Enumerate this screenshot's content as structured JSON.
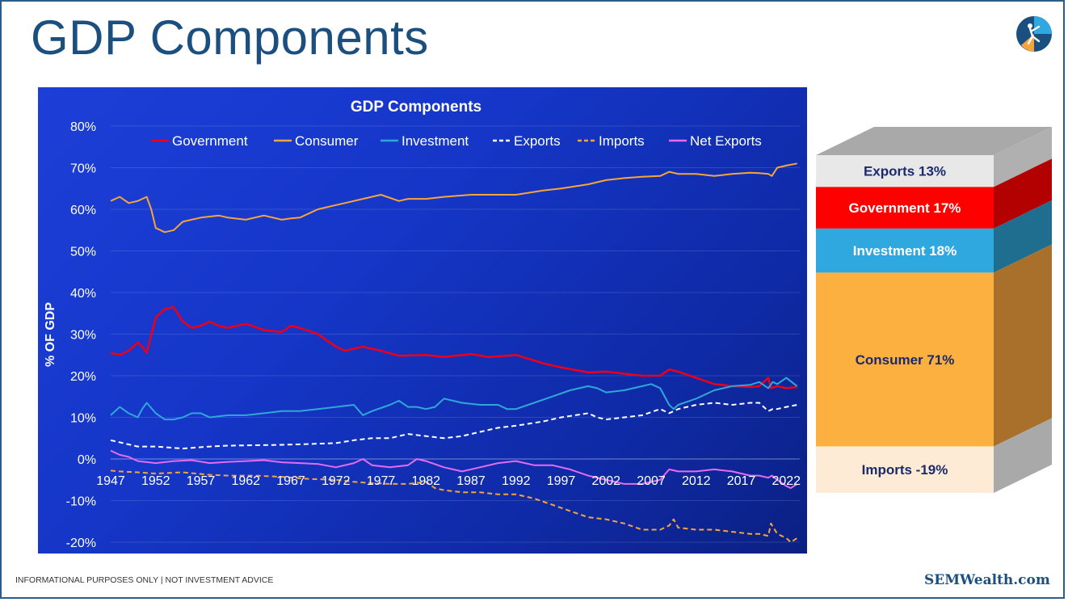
{
  "page": {
    "title": "GDP Components",
    "footer_note": "INFORMATIONAL PURPOSES ONLY | NOT INVESTMENT ADVICE",
    "brand": "SEMWealth.com"
  },
  "colors": {
    "title": "#1b4f80",
    "panel": "#1536c7",
    "government": "#e8001c",
    "consumer": "#f5a53a",
    "investment": "#2fa8d8",
    "exports": "#ffffff",
    "imports": "#f5a53a",
    "net_exports": "#e66bf0"
  },
  "chart_data": [
    {
      "type": "line",
      "title": "GDP Components",
      "xlabel": "",
      "ylabel": "% OF GDP",
      "ylim": [
        -20,
        80
      ],
      "yticks": [
        "80%",
        "70%",
        "60%",
        "50%",
        "40%",
        "30%",
        "20%",
        "10%",
        "0%",
        "-10%",
        "-20%"
      ],
      "xlim": [
        1947,
        2023.5
      ],
      "xticks": [
        "1947",
        "1952",
        "1957",
        "1962",
        "1967",
        "1972",
        "1977",
        "1982",
        "1987",
        "1992",
        "1997",
        "2002",
        "2007",
        "2012",
        "2017",
        "2022"
      ],
      "grid": true,
      "legend": "top",
      "series": [
        {
          "name": "Government",
          "color": "#e8001c",
          "dash": false,
          "x": [
            1947,
            1948,
            1949,
            1950,
            1950.5,
            1951,
            1952,
            1953,
            1954,
            1955,
            1956,
            1957,
            1958,
            1959,
            1960,
            1962,
            1964,
            1966,
            1967,
            1968,
            1970,
            1972,
            1973,
            1975,
            1977,
            1979,
            1982,
            1984,
            1987,
            1989,
            1992,
            1995,
            1997,
            2000,
            2002,
            2004,
            2006,
            2008,
            2009,
            2010,
            2012,
            2014,
            2016,
            2018,
            2019,
            2020,
            2020.3,
            2021,
            2022,
            2023.2
          ],
          "y": [
            25.5,
            25,
            26,
            28,
            27,
            25.5,
            34,
            36,
            36.5,
            33,
            31.5,
            32,
            33,
            32,
            31.5,
            32.5,
            31,
            30.5,
            32,
            31.5,
            30,
            27,
            26,
            27,
            26,
            24.8,
            25,
            24.5,
            25.2,
            24.5,
            25,
            23,
            22,
            20.8,
            21,
            20.5,
            20,
            20,
            21.5,
            21,
            19.5,
            18,
            17.5,
            17.3,
            17.5,
            19.5,
            17,
            17.5,
            17,
            17.3
          ]
        },
        {
          "name": "Consumer",
          "color": "#f5a53a",
          "dash": false,
          "x": [
            1947,
            1948,
            1949,
            1950,
            1951,
            1951.5,
            1952,
            1953,
            1954,
            1955,
            1957,
            1959,
            1960,
            1962,
            1964,
            1966,
            1967,
            1968,
            1970,
            1972,
            1973,
            1975,
            1977,
            1979,
            1980,
            1982,
            1984,
            1987,
            1990,
            1992,
            1995,
            1997,
            2000,
            2002,
            2004,
            2006,
            2008,
            2009,
            2010,
            2012,
            2014,
            2016,
            2018,
            2019,
            2020,
            2020.4,
            2021,
            2022,
            2023.2
          ],
          "y": [
            62,
            63,
            61.5,
            62,
            63,
            60,
            55.5,
            54.5,
            55,
            57,
            58,
            58.5,
            58,
            57.5,
            58.5,
            57.5,
            57.8,
            58,
            60,
            61,
            61.5,
            62.5,
            63.5,
            62,
            62.5,
            62.5,
            63,
            63.5,
            63.5,
            63.5,
            64.5,
            65,
            66,
            67,
            67.5,
            67.8,
            68,
            69,
            68.5,
            68.5,
            68,
            68.5,
            68.8,
            68.7,
            68.5,
            68,
            70,
            70.5,
            71
          ]
        },
        {
          "name": "Investment",
          "color": "#2fa8d8",
          "dash": false,
          "x": [
            1947,
            1948,
            1949,
            1950,
            1950.5,
            1951,
            1952,
            1953,
            1954,
            1955,
            1956,
            1957,
            1958,
            1960,
            1962,
            1964,
            1966,
            1968,
            1970,
            1972,
            1974,
            1975,
            1976,
            1978,
            1979,
            1980,
            1981,
            1982,
            1983,
            1984,
            1986,
            1988,
            1990,
            1991,
            1992,
            1994,
            1996,
            1998,
            2000,
            2001,
            2002,
            2004,
            2006,
            2007,
            2008,
            2009,
            2009.5,
            2010,
            2012,
            2014,
            2016,
            2018,
            2019,
            2020,
            2020.5,
            2021,
            2022,
            2023.2
          ],
          "y": [
            10.5,
            12.5,
            11,
            10,
            12,
            13.5,
            11,
            9.5,
            9.5,
            10,
            11,
            11,
            10,
            10.5,
            10.5,
            11,
            11.5,
            11.5,
            12,
            12.5,
            13,
            10.5,
            11.5,
            13,
            14,
            12.5,
            12.5,
            12,
            12.5,
            14.5,
            13.5,
            13,
            13,
            12,
            12,
            13.5,
            15,
            16.5,
            17.5,
            17,
            16,
            16.5,
            17.5,
            18,
            17,
            13,
            12,
            13,
            14.5,
            16.5,
            17.5,
            17.8,
            18.5,
            17,
            18.5,
            18,
            19.5,
            17.5
          ]
        },
        {
          "name": "Exports",
          "color": "#ffffff",
          "dash": true,
          "x": [
            1947,
            1948,
            1949,
            1950,
            1952,
            1955,
            1958,
            1960,
            1963,
            1966,
            1969,
            1972,
            1974,
            1976,
            1978,
            1980,
            1982,
            1984,
            1986,
            1988,
            1990,
            1992,
            1995,
            1997,
            2000,
            2001,
            2002,
            2004,
            2006,
            2008,
            2009,
            2010,
            2012,
            2014,
            2016,
            2018,
            2019,
            2020,
            2020.5,
            2021,
            2022,
            2023.2
          ],
          "y": [
            4.5,
            4,
            3.5,
            3,
            3,
            2.5,
            3,
            3.2,
            3.3,
            3.4,
            3.6,
            3.8,
            4.5,
            5,
            5,
            6,
            5.5,
            5,
            5.5,
            6.5,
            7.5,
            8,
            9,
            10,
            11,
            10,
            9.5,
            10,
            10.5,
            12,
            11,
            12,
            13,
            13.5,
            13,
            13.5,
            13.5,
            11.5,
            12,
            12,
            12.5,
            13
          ]
        },
        {
          "name": "Imports",
          "color": "#f5a53a",
          "dash": true,
          "x": [
            1947,
            1948,
            1950,
            1952,
            1955,
            1958,
            1960,
            1963,
            1966,
            1969,
            1972,
            1974,
            1976,
            1978,
            1980,
            1982,
            1983,
            1984,
            1986,
            1988,
            1990,
            1992,
            1994,
            1996,
            1998,
            2000,
            2002,
            2004,
            2006,
            2008,
            2009,
            2009.5,
            2010,
            2012,
            2014,
            2016,
            2018,
            2019,
            2020,
            2020.3,
            2021,
            2022,
            2022.5,
            2023.2
          ],
          "y": [
            -2.8,
            -3,
            -3.2,
            -3.5,
            -3.2,
            -3.8,
            -4,
            -4,
            -4.3,
            -4.8,
            -5,
            -5.5,
            -5.8,
            -6,
            -6,
            -5.5,
            -7,
            -7.5,
            -8,
            -8,
            -8.5,
            -8.5,
            -9.5,
            -11,
            -12.5,
            -14,
            -14.5,
            -15.5,
            -17,
            -17,
            -16,
            -14.5,
            -16.5,
            -17,
            -17,
            -17.5,
            -18,
            -18,
            -18.5,
            -15.5,
            -18,
            -19,
            -20,
            -19
          ]
        },
        {
          "name": "Net Exports",
          "color": "#e66bf0",
          "dash": false,
          "x": [
            1947,
            1948,
            1949,
            1950,
            1952,
            1954,
            1956,
            1958,
            1960,
            1962,
            1964,
            1966,
            1968,
            1970,
            1972,
            1974,
            1975,
            1976,
            1978,
            1980,
            1981,
            1982,
            1984,
            1986,
            1988,
            1990,
            1992,
            1994,
            1996,
            1998,
            2000,
            2002,
            2004,
            2006,
            2008,
            2009,
            2010,
            2012,
            2014,
            2016,
            2018,
            2019,
            2020,
            2020.4,
            2021,
            2022,
            2022.5,
            2023.2
          ],
          "y": [
            2,
            1,
            0.5,
            -0.5,
            -1,
            -0.5,
            -0.3,
            -1,
            -0.7,
            -0.5,
            -0.3,
            -0.8,
            -1,
            -1.2,
            -2,
            -1,
            0,
            -1.5,
            -2,
            -1.5,
            0,
            -0.5,
            -2,
            -3,
            -2,
            -1,
            -0.5,
            -1.5,
            -1.5,
            -2.5,
            -4,
            -5,
            -6,
            -6,
            -5,
            -2.5,
            -3,
            -3,
            -2.5,
            -3,
            -4,
            -4,
            -4.5,
            -4,
            -5,
            -6.5,
            -7,
            -6
          ]
        }
      ]
    },
    {
      "type": "bar",
      "title": "",
      "stacked": true,
      "categories": [
        "Imports -19%",
        "Consumer 71%",
        "Investment 18%",
        "Government 17%",
        "Exports 13%"
      ],
      "values": [
        -19,
        71,
        18,
        17,
        13
      ],
      "segments": [
        {
          "label": "Exports 13%",
          "value": 13,
          "color": "#e8e8e8",
          "side": "#b0b0b0",
          "text_color": "#1a2a6c"
        },
        {
          "label": "Government 17%",
          "value": 17,
          "color": "#ff0000",
          "side": "#b30000",
          "text_color": "#ffffff"
        },
        {
          "label": "Investment 18%",
          "value": 18,
          "color": "#2fa8e0",
          "side": "#1f6d8f",
          "text_color": "#ffffff"
        },
        {
          "label": "Consumer 71%",
          "value": 71,
          "color": "#fbb040",
          "side": "#a8702a",
          "text_color": "#1a2a6c"
        },
        {
          "label": "Imports -19%",
          "value": -19,
          "color": "#fdebd6",
          "side": "#a9a9a9",
          "text_color": "#1a2a6c"
        }
      ]
    }
  ]
}
